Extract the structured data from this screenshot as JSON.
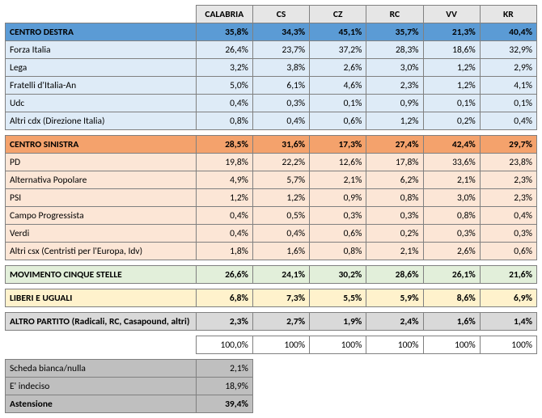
{
  "colors": {
    "header_bg": "#e6e6e6",
    "cd_header_bg": "#5b9bd5",
    "cd_row_bg": "#deebf7",
    "cs_header_bg": "#f4a26c",
    "cs_row_bg": "#fce6d6",
    "m5s_bg": "#e2efda",
    "leu_bg": "#fff2cc",
    "altro_bg": "#d9d9d9",
    "footer_bg": "#bfbfbf",
    "border": "#808080"
  },
  "columns": [
    "",
    "CALABRIA",
    "CS",
    "CZ",
    "RC",
    "VV",
    "KR"
  ],
  "sections": [
    {
      "type": "group",
      "header_bg": "#5b9bd5",
      "row_bg": "#deebf7",
      "header": {
        "label": "CENTRO DESTRA",
        "vals": [
          "35,8%",
          "34,3%",
          "45,1%",
          "35,7%",
          "21,3%",
          "40,4%"
        ]
      },
      "rows": [
        {
          "label": "Forza Italia",
          "vals": [
            "26,4%",
            "23,7%",
            "37,2%",
            "28,3%",
            "18,6%",
            "32,9%"
          ]
        },
        {
          "label": "Lega",
          "vals": [
            "3,2%",
            "3,8%",
            "2,6%",
            "3,0%",
            "1,2%",
            "2,9%"
          ]
        },
        {
          "label": "Fratelli d'Italia-An",
          "vals": [
            "5,0%",
            "6,1%",
            "4,6%",
            "2,3%",
            "1,2%",
            "4,1%"
          ]
        },
        {
          "label": "Udc",
          "vals": [
            "0,4%",
            "0,3%",
            "0,1%",
            "0,9%",
            "0,1%",
            "0,1%"
          ]
        },
        {
          "label": "Altri cdx (Direzione Italia)",
          "vals": [
            "0,8%",
            "0,4%",
            "0,6%",
            "1,2%",
            "0,2%",
            "0,4%"
          ]
        }
      ]
    },
    {
      "type": "group",
      "header_bg": "#f4a26c",
      "row_bg": "#fce6d6",
      "header": {
        "label": "CENTRO SINISTRA",
        "vals": [
          "28,5%",
          "31,6%",
          "17,3%",
          "27,4%",
          "42,4%",
          "29,7%"
        ]
      },
      "rows": [
        {
          "label": "PD",
          "vals": [
            "19,8%",
            "22,2%",
            "12,6%",
            "17,8%",
            "33,6%",
            "23,8%"
          ]
        },
        {
          "label": "Alternativa Popolare",
          "vals": [
            "4,9%",
            "5,7%",
            "2,1%",
            "6,2%",
            "2,1%",
            "2,3%"
          ]
        },
        {
          "label": "PSI",
          "vals": [
            "1,2%",
            "1,2%",
            "0,9%",
            "0,8%",
            "3,0%",
            "2,3%"
          ]
        },
        {
          "label": "Campo Progressista",
          "vals": [
            "0,4%",
            "0,5%",
            "0,3%",
            "0,3%",
            "0,8%",
            "0,4%"
          ]
        },
        {
          "label": "Verdi",
          "vals": [
            "0,4%",
            "0,4%",
            "0,6%",
            "0,2%",
            "0,3%",
            "0,3%"
          ]
        },
        {
          "label": "Altri csx (Centristi per l'Europa, Idv)",
          "vals": [
            "1,8%",
            "1,6%",
            "0,8%",
            "2,1%",
            "2,6%",
            "0,6%"
          ]
        }
      ]
    },
    {
      "type": "single",
      "bg": "#e2efda",
      "row": {
        "label": "MOVIMENTO CINQUE STELLE",
        "vals": [
          "26,6%",
          "24,1%",
          "30,2%",
          "28,6%",
          "26,1%",
          "21,6%"
        ]
      }
    },
    {
      "type": "single",
      "bg": "#fff2cc",
      "row": {
        "label": "LIBERI E UGUALI",
        "vals": [
          "6,8%",
          "7,3%",
          "5,5%",
          "5,9%",
          "8,6%",
          "6,9%"
        ]
      }
    },
    {
      "type": "single",
      "bg": "#d9d9d9",
      "row": {
        "label": "ALTRO PARTITO (Radicali, RC, Casapound, altri)",
        "vals": [
          "2,3%",
          "2,7%",
          "1,9%",
          "2,4%",
          "1,6%",
          "1,4%"
        ]
      }
    }
  ],
  "totals": {
    "label": "",
    "vals": [
      "100,0%",
      "100%",
      "100%",
      "100%",
      "100%",
      "100%"
    ]
  },
  "footer": {
    "bg": "#bfbfbf",
    "rows": [
      {
        "label": "Scheda bianca/nulla",
        "val": "2,1%"
      },
      {
        "label": "E' indeciso",
        "val": "18,9%"
      },
      {
        "label": "Astensione",
        "val": "39,4%",
        "bold": true
      }
    ]
  }
}
